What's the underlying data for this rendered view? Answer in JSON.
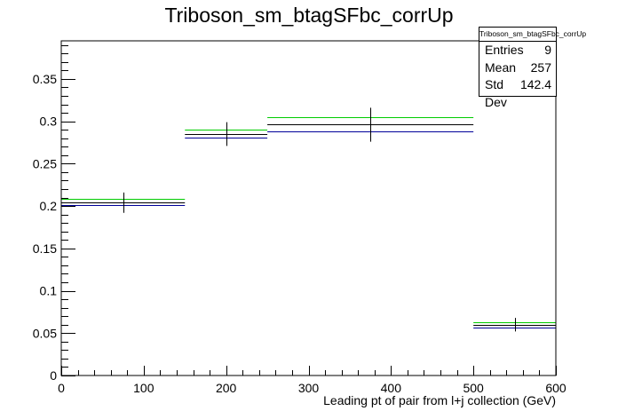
{
  "chart_data": {
    "type": "histogram",
    "title": "Triboson_sm_btagSFbc_corrUp",
    "xlabel": "Leading pt of pair from l+j collection (GeV)",
    "ylabel": "",
    "xlim": [
      0,
      600
    ],
    "ylim": [
      0,
      0.395
    ],
    "x_ticks": [
      0,
      100,
      200,
      300,
      400,
      500,
      600
    ],
    "y_ticks": [
      0,
      0.05,
      0.1,
      0.15,
      0.2,
      0.25,
      0.3,
      0.35
    ],
    "x_tick_labels": [
      "0",
      "100",
      "200",
      "300",
      "400",
      "500",
      "600"
    ],
    "y_tick_labels": [
      "0",
      "0.05",
      "0.1",
      "0.15",
      "0.2",
      "0.25",
      "0.3",
      "0.35"
    ],
    "bins": [
      [
        0,
        150
      ],
      [
        150,
        250
      ],
      [
        250,
        500
      ],
      [
        500,
        600
      ]
    ],
    "series": [
      {
        "color": "#00cc00",
        "values": [
          0.209,
          0.29,
          0.305,
          0.063
        ]
      },
      {
        "color": "#000000",
        "values": [
          0.204,
          0.285,
          0.296,
          0.06
        ]
      },
      {
        "color": "#000099",
        "values": [
          0.201,
          0.281,
          0.288,
          0.057
        ]
      }
    ],
    "errors": [
      0.012,
      0.014,
      0.02,
      0.008
    ],
    "stats": {
      "name": "Triboson_sm_btagSFbc_corrUp",
      "entries_label": "Entries",
      "entries": "9",
      "mean_label": "Mean",
      "mean": "257",
      "std_label": "Std Dev",
      "std": "142.4"
    }
  }
}
